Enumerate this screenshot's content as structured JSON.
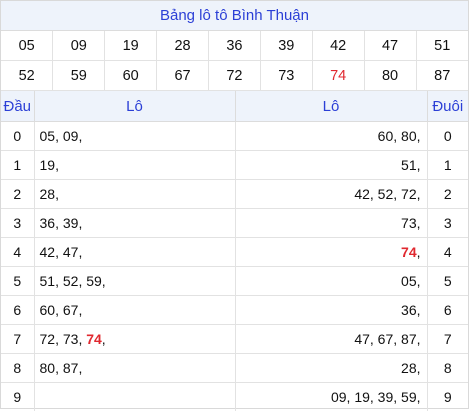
{
  "title": "Bảng lô tô Bình Thuận",
  "numbers": [
    [
      "05",
      "09",
      "19",
      "28",
      "36",
      "39",
      "42",
      "47",
      "51"
    ],
    [
      "52",
      "59",
      "60",
      "67",
      "72",
      "73",
      "74",
      "80",
      "87"
    ]
  ],
  "highlight": "74",
  "headers": {
    "dau": "Đầu",
    "lo_left": "Lô",
    "lo_right": "Lô",
    "duoi": "Đuôi"
  },
  "rows": [
    {
      "dau": "0",
      "left": [
        "05",
        "09"
      ],
      "right": [
        "60",
        "80"
      ],
      "duoi": "0"
    },
    {
      "dau": "1",
      "left": [
        "19"
      ],
      "right": [
        "51"
      ],
      "duoi": "1"
    },
    {
      "dau": "2",
      "left": [
        "28"
      ],
      "right": [
        "42",
        "52",
        "72"
      ],
      "duoi": "2"
    },
    {
      "dau": "3",
      "left": [
        "36",
        "39"
      ],
      "right": [
        "73"
      ],
      "duoi": "3"
    },
    {
      "dau": "4",
      "left": [
        "42",
        "47"
      ],
      "right": [
        "74"
      ],
      "duoi": "4"
    },
    {
      "dau": "5",
      "left": [
        "51",
        "52",
        "59"
      ],
      "right": [
        "05"
      ],
      "duoi": "5"
    },
    {
      "dau": "6",
      "left": [
        "60",
        "67"
      ],
      "right": [
        "36"
      ],
      "duoi": "6"
    },
    {
      "dau": "7",
      "left": [
        "72",
        "73",
        "74"
      ],
      "right": [
        "47",
        "67",
        "87"
      ],
      "duoi": "7"
    },
    {
      "dau": "8",
      "left": [
        "80",
        "87"
      ],
      "right": [
        "28"
      ],
      "duoi": "8"
    },
    {
      "dau": "9",
      "left": [],
      "right": [
        "09",
        "19",
        "39",
        "59"
      ],
      "duoi": "9"
    }
  ]
}
